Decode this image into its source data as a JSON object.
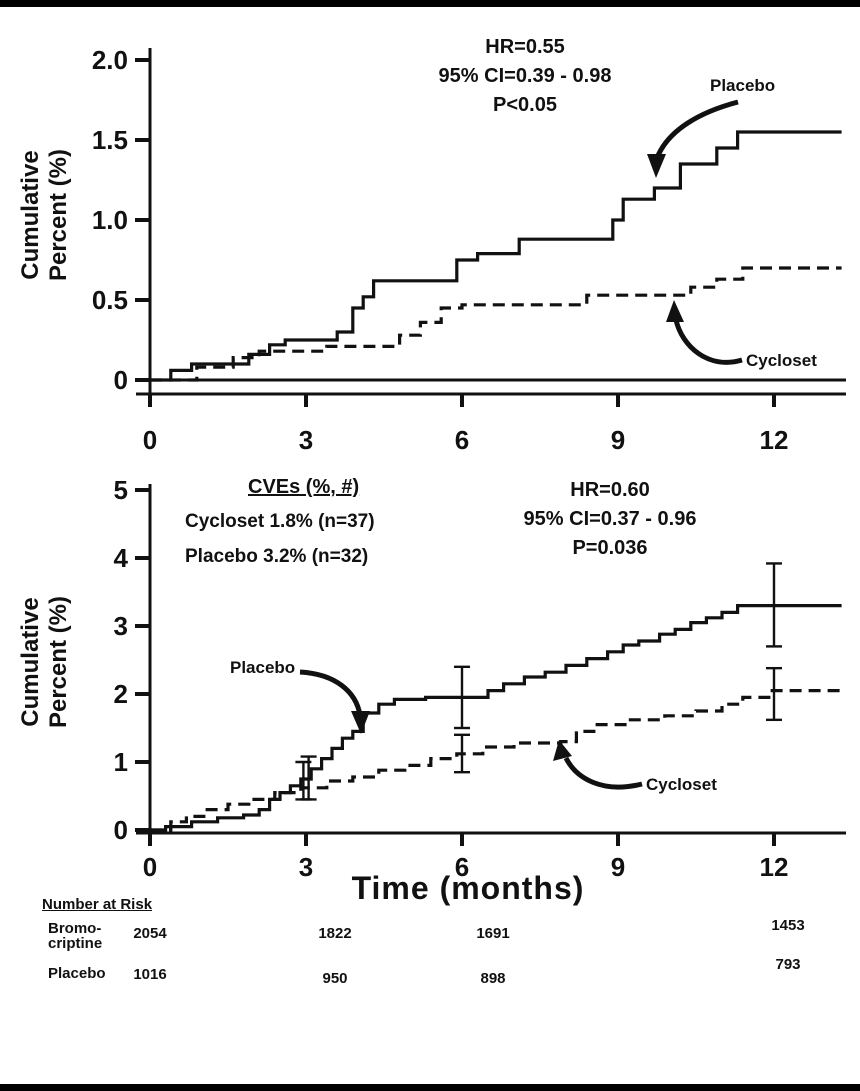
{
  "chart_data": [
    {
      "type": "line",
      "title": "",
      "ylabel": "Cumulative Percent (%)",
      "ylabel_lines": [
        "Cumulative",
        "Percent (%)"
      ],
      "xlabel": "",
      "xlim": [
        0,
        13.3
      ],
      "ylim": [
        0,
        2.0
      ],
      "xticks": [
        0,
        3,
        6,
        9,
        12
      ],
      "xtick_labels": [
        "0",
        "3",
        "6",
        "9",
        "12"
      ],
      "yticks": [
        0,
        0.5,
        1.0,
        1.5,
        2.0
      ],
      "ytick_labels": [
        "0",
        "0.5",
        "1.0",
        "1.5",
        "2.0"
      ],
      "grid": false,
      "stats": [
        "HR=0.55",
        "95% CI=0.39 - 0.98",
        "P<0.05"
      ],
      "series": [
        {
          "name": "Placebo",
          "style": "solid",
          "steps": [
            [
              0,
              0
            ],
            [
              0.4,
              0
            ],
            [
              0.4,
              0.06
            ],
            [
              0.8,
              0.06
            ],
            [
              0.8,
              0.1
            ],
            [
              1.9,
              0.1
            ],
            [
              1.9,
              0.16
            ],
            [
              2.3,
              0.16
            ],
            [
              2.3,
              0.22
            ],
            [
              2.6,
              0.22
            ],
            [
              2.6,
              0.25
            ],
            [
              3.6,
              0.25
            ],
            [
              3.6,
              0.3
            ],
            [
              3.9,
              0.3
            ],
            [
              3.9,
              0.45
            ],
            [
              4.1,
              0.45
            ],
            [
              4.1,
              0.52
            ],
            [
              4.3,
              0.52
            ],
            [
              4.3,
              0.62
            ],
            [
              5.9,
              0.62
            ],
            [
              5.9,
              0.75
            ],
            [
              6.3,
              0.75
            ],
            [
              6.3,
              0.79
            ],
            [
              7.1,
              0.79
            ],
            [
              7.1,
              0.88
            ],
            [
              8.9,
              0.88
            ],
            [
              8.9,
              1.0
            ],
            [
              9.1,
              1.0
            ],
            [
              9.1,
              1.13
            ],
            [
              9.7,
              1.13
            ],
            [
              9.7,
              1.2
            ],
            [
              10.2,
              1.2
            ],
            [
              10.2,
              1.35
            ],
            [
              10.9,
              1.35
            ],
            [
              10.9,
              1.45
            ],
            [
              11.3,
              1.45
            ],
            [
              11.3,
              1.55
            ],
            [
              13.3,
              1.55
            ]
          ]
        },
        {
          "name": "Cycloset",
          "style": "dashed",
          "steps": [
            [
              0,
              0
            ],
            [
              0.9,
              0
            ],
            [
              0.9,
              0.08
            ],
            [
              1.6,
              0.08
            ],
            [
              1.6,
              0.14
            ],
            [
              2.1,
              0.14
            ],
            [
              2.1,
              0.18
            ],
            [
              3.4,
              0.18
            ],
            [
              3.4,
              0.21
            ],
            [
              4.8,
              0.21
            ],
            [
              4.8,
              0.28
            ],
            [
              5.2,
              0.28
            ],
            [
              5.2,
              0.36
            ],
            [
              5.6,
              0.36
            ],
            [
              5.6,
              0.45
            ],
            [
              6.0,
              0.45
            ],
            [
              6.0,
              0.47
            ],
            [
              8.4,
              0.47
            ],
            [
              8.4,
              0.53
            ],
            [
              10.4,
              0.53
            ],
            [
              10.4,
              0.58
            ],
            [
              10.9,
              0.58
            ],
            [
              10.9,
              0.63
            ],
            [
              11.4,
              0.63
            ],
            [
              11.4,
              0.7
            ],
            [
              13.3,
              0.7
            ]
          ]
        }
      ]
    },
    {
      "type": "line",
      "title": "",
      "ylabel": "Cumulative Percent (%)",
      "ylabel_lines": [
        "Cumulative",
        "Percent (%)"
      ],
      "xlabel": "Time (months)",
      "xlim": [
        0,
        13.3
      ],
      "ylim": [
        0,
        5
      ],
      "xticks": [
        0,
        3,
        6,
        9,
        12
      ],
      "xtick_labels": [
        "0",
        "3",
        "6",
        "9",
        "12"
      ],
      "yticks": [
        0,
        1,
        2,
        3,
        4,
        5
      ],
      "ytick_labels": [
        "0",
        "1",
        "2",
        "3",
        "4",
        "5"
      ],
      "grid": false,
      "stats": [
        "HR=0.60",
        "95% CI=0.37 - 0.96",
        "P=0.036"
      ],
      "legend_title": "CVEs (%, #)",
      "legend_lines": [
        "Cycloset 1.8% (n=37)",
        "Placebo 3.2% (n=32)"
      ],
      "series": [
        {
          "name": "Placebo",
          "style": "solid",
          "steps": [
            [
              0,
              0
            ],
            [
              0.3,
              0
            ],
            [
              0.3,
              0.05
            ],
            [
              0.8,
              0.05
            ],
            [
              0.8,
              0.12
            ],
            [
              1.3,
              0.12
            ],
            [
              1.3,
              0.18
            ],
            [
              1.8,
              0.18
            ],
            [
              1.8,
              0.22
            ],
            [
              2.1,
              0.22
            ],
            [
              2.1,
              0.3
            ],
            [
              2.3,
              0.3
            ],
            [
              2.3,
              0.45
            ],
            [
              2.5,
              0.45
            ],
            [
              2.5,
              0.55
            ],
            [
              2.7,
              0.55
            ],
            [
              2.7,
              0.65
            ],
            [
              2.9,
              0.65
            ],
            [
              2.9,
              0.75
            ],
            [
              3.1,
              0.75
            ],
            [
              3.1,
              0.9
            ],
            [
              3.3,
              0.9
            ],
            [
              3.3,
              1.05
            ],
            [
              3.5,
              1.05
            ],
            [
              3.5,
              1.2
            ],
            [
              3.7,
              1.2
            ],
            [
              3.7,
              1.35
            ],
            [
              3.9,
              1.35
            ],
            [
              3.9,
              1.45
            ],
            [
              4.1,
              1.45
            ],
            [
              4.1,
              1.72
            ],
            [
              4.4,
              1.72
            ],
            [
              4.4,
              1.85
            ],
            [
              4.7,
              1.85
            ],
            [
              4.7,
              1.92
            ],
            [
              5.3,
              1.92
            ],
            [
              5.3,
              1.95
            ],
            [
              6.5,
              1.95
            ],
            [
              6.5,
              2.05
            ],
            [
              6.8,
              2.05
            ],
            [
              6.8,
              2.15
            ],
            [
              7.2,
              2.15
            ],
            [
              7.2,
              2.25
            ],
            [
              7.6,
              2.25
            ],
            [
              7.6,
              2.32
            ],
            [
              8.0,
              2.32
            ],
            [
              8.0,
              2.42
            ],
            [
              8.4,
              2.42
            ],
            [
              8.4,
              2.52
            ],
            [
              8.8,
              2.52
            ],
            [
              8.8,
              2.62
            ],
            [
              9.1,
              2.62
            ],
            [
              9.1,
              2.72
            ],
            [
              9.4,
              2.72
            ],
            [
              9.4,
              2.78
            ],
            [
              9.8,
              2.78
            ],
            [
              9.8,
              2.88
            ],
            [
              10.1,
              2.88
            ],
            [
              10.1,
              2.95
            ],
            [
              10.4,
              2.95
            ],
            [
              10.4,
              3.05
            ],
            [
              10.7,
              3.05
            ],
            [
              10.7,
              3.12
            ],
            [
              11.0,
              3.12
            ],
            [
              11.0,
              3.2
            ],
            [
              11.3,
              3.2
            ],
            [
              11.3,
              3.3
            ],
            [
              13.3,
              3.3
            ]
          ],
          "error_bars": [
            {
              "x": 3.05,
              "y": 0.78,
              "lo": 0.45,
              "hi": 1.08
            },
            {
              "x": 6,
              "y": 1.95,
              "lo": 1.5,
              "hi": 2.4
            },
            {
              "x": 12,
              "y": 3.3,
              "lo": 2.7,
              "hi": 3.92
            }
          ]
        },
        {
          "name": "Cycloset",
          "style": "dashed",
          "steps": [
            [
              0,
              0
            ],
            [
              0.4,
              0
            ],
            [
              0.4,
              0.12
            ],
            [
              0.7,
              0.12
            ],
            [
              0.7,
              0.2
            ],
            [
              1.1,
              0.2
            ],
            [
              1.1,
              0.3
            ],
            [
              1.5,
              0.3
            ],
            [
              1.5,
              0.38
            ],
            [
              1.9,
              0.38
            ],
            [
              1.9,
              0.45
            ],
            [
              2.4,
              0.45
            ],
            [
              2.4,
              0.55
            ],
            [
              2.9,
              0.55
            ],
            [
              2.9,
              0.62
            ],
            [
              3.4,
              0.62
            ],
            [
              3.4,
              0.72
            ],
            [
              3.9,
              0.72
            ],
            [
              3.9,
              0.78
            ],
            [
              4.4,
              0.78
            ],
            [
              4.4,
              0.88
            ],
            [
              4.9,
              0.88
            ],
            [
              4.9,
              0.95
            ],
            [
              5.4,
              0.95
            ],
            [
              5.4,
              1.05
            ],
            [
              5.9,
              1.05
            ],
            [
              5.9,
              1.12
            ],
            [
              6.4,
              1.12
            ],
            [
              6.4,
              1.22
            ],
            [
              7.0,
              1.22
            ],
            [
              7.0,
              1.28
            ],
            [
              7.9,
              1.28
            ],
            [
              7.9,
              1.3
            ],
            [
              8.2,
              1.3
            ],
            [
              8.2,
              1.45
            ],
            [
              8.6,
              1.45
            ],
            [
              8.6,
              1.55
            ],
            [
              9.2,
              1.55
            ],
            [
              9.2,
              1.62
            ],
            [
              9.9,
              1.62
            ],
            [
              9.9,
              1.68
            ],
            [
              10.5,
              1.68
            ],
            [
              10.5,
              1.75
            ],
            [
              11.0,
              1.75
            ],
            [
              11.0,
              1.85
            ],
            [
              11.4,
              1.85
            ],
            [
              11.4,
              1.95
            ],
            [
              11.9,
              1.95
            ],
            [
              11.9,
              2.05
            ],
            [
              13.3,
              2.05
            ]
          ],
          "error_bars": [
            {
              "x": 2.95,
              "y": 0.72,
              "lo": 0.45,
              "hi": 1.0
            },
            {
              "x": 6,
              "y": 1.12,
              "lo": 0.85,
              "hi": 1.4
            },
            {
              "x": 12,
              "y": 2.0,
              "lo": 1.62,
              "hi": 2.38
            }
          ]
        }
      ]
    }
  ],
  "risk_table": {
    "title": "Number at Risk",
    "rows": [
      {
        "label_line1": "Bromo-",
        "label_line2": "criptine",
        "values": [
          "2054",
          "1822",
          "1691",
          "1453"
        ]
      },
      {
        "label_line1": "Placebo",
        "label_line2": "",
        "values": [
          "1016",
          "950",
          "898",
          "793"
        ]
      }
    ]
  }
}
